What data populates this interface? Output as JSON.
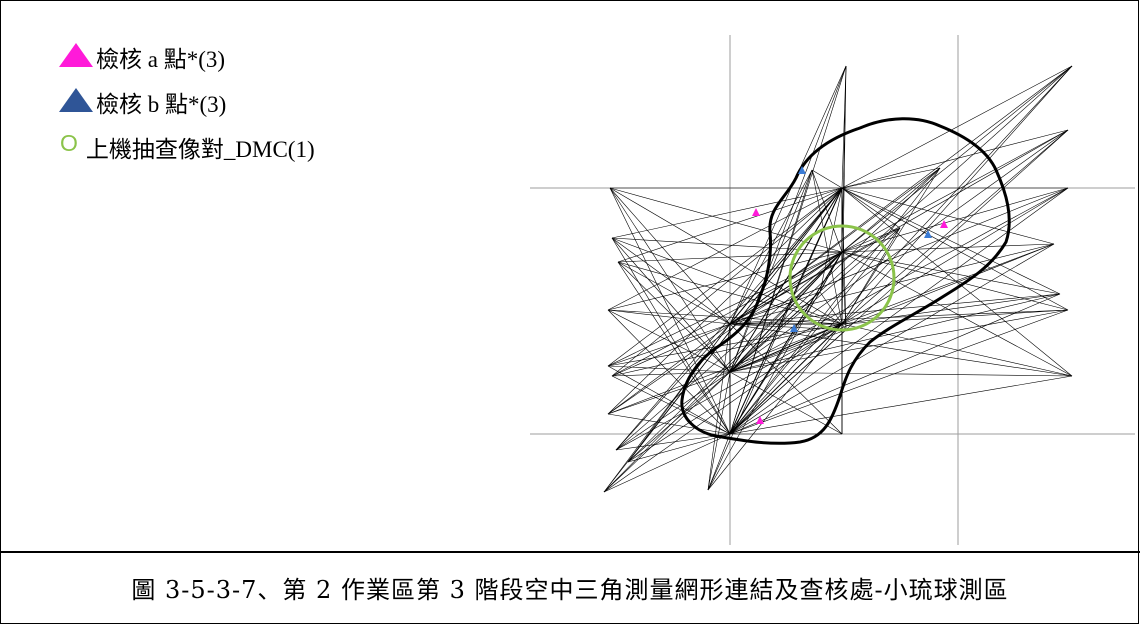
{
  "legend": {
    "items": [
      {
        "text": "檢核 a 點*(3)",
        "color": "#ff1ad9",
        "icon": "triangle"
      },
      {
        "text": "檢核 b 點*(3)",
        "color": "#2f5597",
        "icon": "triangle"
      },
      {
        "text": "上機抽查像對_DMC(1)",
        "symbol": "O",
        "color": "#8bc34a",
        "icon": "circle"
      }
    ]
  },
  "caption": "圖 3-5-3-7、第 2 作業區第 3 階段空中三角測量網形連結及查核處-小琉球測區",
  "colors": {
    "check_a": "#ff1ad9",
    "check_b": "#3a7bd5",
    "sample_circle": "#8bc34a",
    "network_lines": "#000000",
    "grid": "#9e9e9e"
  }
}
